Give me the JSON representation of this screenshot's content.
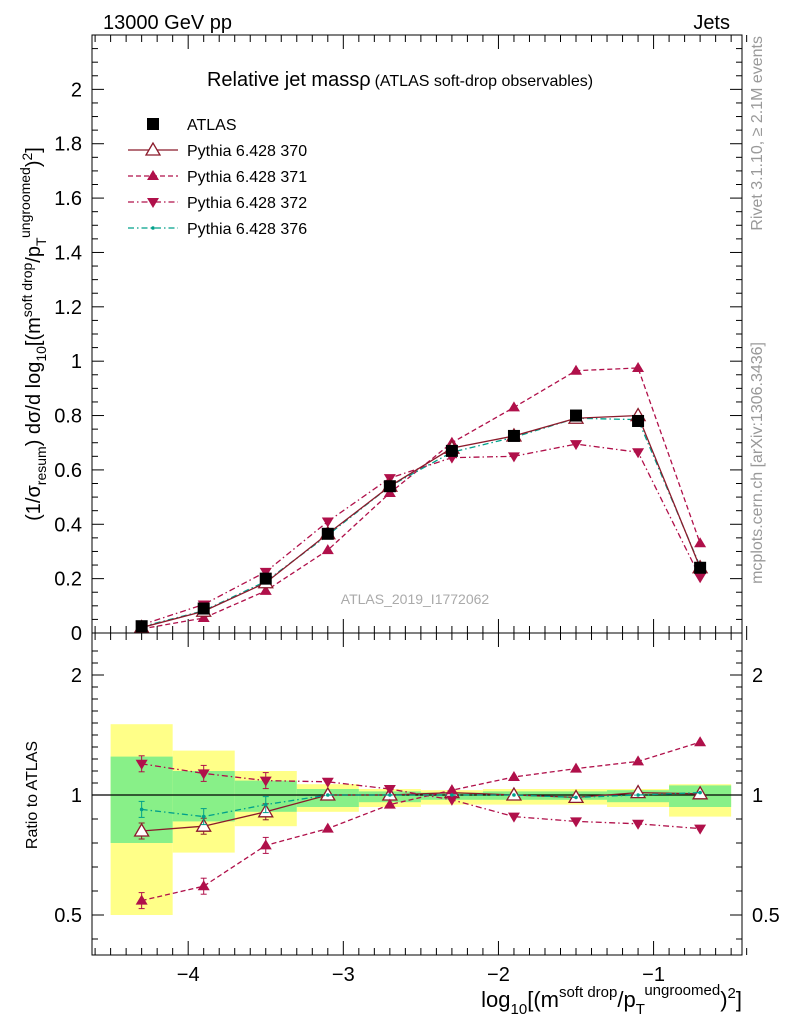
{
  "header": {
    "energy_label": "13000 GeV pp",
    "category_label": "Jets"
  },
  "side_labels": {
    "rivet": "Rivet 3.1.10, ≥ 2.1M events",
    "mcplots": "mcplots.cern.ch [arXiv:1306.3436]"
  },
  "watermark": "ATLAS_2019_I1772062",
  "chart_data": [
    {
      "type": "line",
      "panel": "main",
      "title": "Relative jet massρ",
      "subtitle": "(ATLAS soft-drop observables)",
      "ylabel": {
        "prefix": "(1/σ",
        "prefix_sub": "resum",
        "middle": ") dσ/d log",
        "middle_sub": "10",
        "open": "[(m",
        "sup1": "soft drop",
        "slash": "/p",
        "sub2": "T",
        "sup2": "ungroomed",
        "close": ")",
        "sup3": "2",
        "end": "]"
      },
      "ylim": [
        0,
        2.2
      ],
      "y_ticks": [
        0,
        0.2,
        0.4,
        0.6,
        0.8,
        1,
        1.2,
        1.4,
        1.6,
        1.8,
        2
      ],
      "y_tick_labels": [
        "0",
        "0.2",
        "0.4",
        "0.6",
        "0.8",
        "1",
        "1.2",
        "1.4",
        "1.6",
        "1.8",
        "2"
      ],
      "legend_placement": "top-left",
      "x": [
        -4.3,
        -3.9,
        -3.5,
        -3.1,
        -2.7,
        -2.3,
        -1.9,
        -1.5,
        -1.1,
        -0.7
      ],
      "series": [
        {
          "name": "ATLAS",
          "marker": "square",
          "color": "#000000",
          "values": [
            0.025,
            0.09,
            0.2,
            0.365,
            0.54,
            0.67,
            0.725,
            0.8,
            0.78,
            0.24
          ]
        },
        {
          "name": "Pythia 6.428 370",
          "marker": "open-triangle-up",
          "color": "#8b1a2b",
          "dash": "solid",
          "values": [
            0.02,
            0.08,
            0.185,
            0.365,
            0.54,
            0.68,
            0.725,
            0.79,
            0.8,
            0.24
          ]
        },
        {
          "name": "Pythia 6.428 371",
          "marker": "triangle-up",
          "color": "#b0104a",
          "dash": "dashed",
          "values": [
            0.015,
            0.055,
            0.155,
            0.305,
            0.515,
            0.7,
            0.83,
            0.965,
            0.975,
            0.33
          ]
        },
        {
          "name": "Pythia 6.428 372",
          "marker": "triangle-down",
          "color": "#b0104a",
          "dash": "dashdot",
          "values": [
            0.03,
            0.105,
            0.225,
            0.41,
            0.57,
            0.645,
            0.65,
            0.695,
            0.665,
            0.205
          ]
        },
        {
          "name": "Pythia 6.428 376",
          "marker": "dot",
          "color": "#00a08a",
          "dash": "dashdot",
          "values": [
            0.023,
            0.082,
            0.19,
            0.36,
            0.54,
            0.665,
            0.72,
            0.79,
            0.785,
            0.245
          ]
        }
      ]
    },
    {
      "type": "line",
      "panel": "ratio",
      "ylabel": "Ratio to ATLAS",
      "ylim": [
        0.3,
        2.3
      ],
      "y_ticks": [
        0.5,
        1,
        2
      ],
      "y_tick_labels": [
        "0.5",
        "1",
        "2"
      ],
      "xlabel": {
        "prefix": "log",
        "prefix_sub": "10",
        "open": "[(m",
        "sup1": "soft drop",
        "slash": "/p",
        "sub2": "T",
        "sup2": "ungroomed",
        "close": ")",
        "sup3": "2",
        "end": "]"
      },
      "xlim": [
        -4.62,
        -0.43
      ],
      "x_ticks": [
        -4,
        -3,
        -2,
        -1
      ],
      "x_tick_labels": [
        "−4",
        "−3",
        "−2",
        "−1"
      ],
      "x": [
        -4.3,
        -3.9,
        -3.5,
        -3.1,
        -2.7,
        -2.3,
        -1.9,
        -1.5,
        -1.1,
        -0.7
      ],
      "bands": {
        "bin_edges": [
          -4.5,
          -4.1,
          -3.7,
          -3.3,
          -2.9,
          -2.5,
          -2.1,
          -1.7,
          -1.3,
          -0.9,
          -0.5
        ],
        "yellow": [
          [
            0.5,
            1.59
          ],
          [
            0.76,
            1.37
          ],
          [
            0.87,
            1.2
          ],
          [
            0.93,
            1.09
          ],
          [
            0.95,
            1.05
          ],
          [
            0.96,
            1.04
          ],
          [
            0.96,
            1.05
          ],
          [
            0.96,
            1.05
          ],
          [
            0.95,
            1.05
          ],
          [
            0.91,
            1.09
          ]
        ],
        "green": [
          [
            0.8,
            1.32
          ],
          [
            0.89,
            1.2
          ],
          [
            0.93,
            1.12
          ],
          [
            0.95,
            1.05
          ],
          [
            0.97,
            1.03
          ],
          [
            0.98,
            1.02
          ],
          [
            0.98,
            1.03
          ],
          [
            0.98,
            1.03
          ],
          [
            0.97,
            1.04
          ],
          [
            0.95,
            1.08
          ]
        ]
      },
      "series": [
        {
          "name": "Pythia 6.428 370",
          "values": [
            0.85,
            0.87,
            0.93,
            1.0,
            1.0,
            1.02,
            1.0,
            0.99,
            1.02,
            1.01
          ]
        },
        {
          "name": "Pythia 6.428 371",
          "values": [
            0.56,
            0.62,
            0.79,
            0.86,
            0.96,
            1.04,
            1.15,
            1.22,
            1.28,
            1.44
          ]
        },
        {
          "name": "Pythia 6.428 372",
          "values": [
            1.26,
            1.18,
            1.12,
            1.11,
            1.05,
            0.98,
            0.91,
            0.89,
            0.88,
            0.86
          ]
        },
        {
          "name": "Pythia 6.428 376",
          "values": [
            0.94,
            0.91,
            0.96,
            1.0,
            1.0,
            1.0,
            1.0,
            0.99,
            1.0,
            1.02
          ]
        }
      ]
    }
  ]
}
